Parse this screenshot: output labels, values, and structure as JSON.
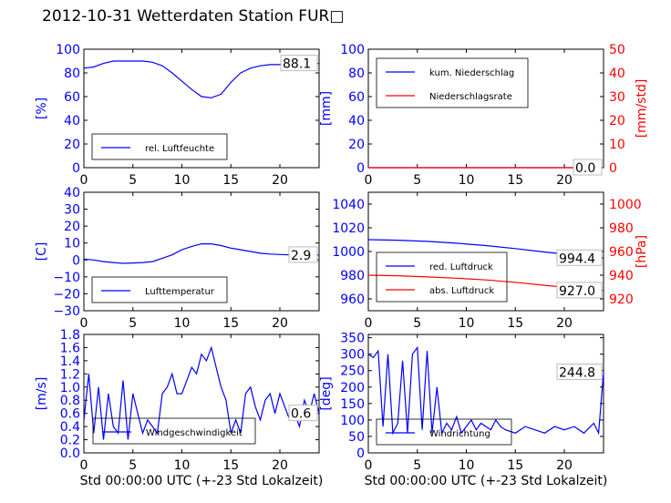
{
  "figure_title": "2012-10-31 Wetterdaten Station FUR□",
  "colors": {
    "primary": "#0000ff",
    "secondary": "#ff0000",
    "annotation": "#000000"
  },
  "chart_data": [
    {
      "id": "humidity",
      "type": "line",
      "ylabel": "[%]",
      "ylim": [
        0,
        100
      ],
      "yticks": [
        "0",
        "20",
        "40",
        "60",
        "80",
        "100"
      ],
      "xlim": [
        0,
        24
      ],
      "xticks": [
        "0",
        "5",
        "10",
        "15",
        "20"
      ],
      "xlabel": "",
      "legend": {
        "placement": "lower-left",
        "entries": [
          "rel. Luftfeuchte"
        ]
      },
      "last_value_label": "88.1",
      "series": [
        {
          "name": "rel. Luftfeuchte",
          "color": "#0000ff",
          "x": [
            0,
            1,
            2,
            3,
            4,
            5,
            6,
            7,
            8,
            9,
            10,
            11,
            12,
            13,
            14,
            15,
            16,
            17,
            18,
            19,
            20,
            21,
            22,
            23,
            24
          ],
          "y": [
            84,
            85,
            88,
            90,
            90,
            90,
            90,
            89,
            86,
            80,
            73,
            66,
            60,
            59,
            62,
            72,
            80,
            84,
            86,
            87,
            87,
            88,
            88,
            88,
            88
          ]
        }
      ]
    },
    {
      "id": "precipitation",
      "type": "line",
      "ylabel": "[mm]",
      "ylabel_right": "[mm/std]",
      "ylim": [
        0,
        100
      ],
      "ylim_right": [
        0,
        50
      ],
      "yticks": [
        "0",
        "20",
        "40",
        "60",
        "80",
        "100"
      ],
      "yticks_right": [
        "0",
        "10",
        "20",
        "30",
        "40",
        "50"
      ],
      "xlim": [
        0,
        24
      ],
      "xticks": [
        "0",
        "5",
        "10",
        "15",
        "20"
      ],
      "xlabel": "",
      "legend": {
        "placement": "upper-left",
        "entries": [
          "kum. Niederschlag",
          "Niederschlagsrate"
        ]
      },
      "last_value_label": "0.0",
      "last_value_label_2": "0.0",
      "series": [
        {
          "name": "kum. Niederschlag",
          "color": "#0000ff",
          "axis": "left",
          "x": [
            0,
            24
          ],
          "y": [
            0,
            0
          ]
        },
        {
          "name": "Niederschlagsrate",
          "color": "#ff0000",
          "axis": "right",
          "x": [
            0,
            24
          ],
          "y": [
            0,
            0
          ]
        }
      ]
    },
    {
      "id": "temperature",
      "type": "line",
      "ylabel": "[C]",
      "ylim": [
        -30,
        40
      ],
      "yticks": [
        "−30",
        "−20",
        "−10",
        "0",
        "10",
        "20",
        "30",
        "40"
      ],
      "xlim": [
        0,
        24
      ],
      "xticks": [
        "0",
        "5",
        "10",
        "15",
        "20"
      ],
      "xlabel": "",
      "legend": {
        "placement": "lower-left",
        "entries": [
          "Lufttemperatur"
        ]
      },
      "last_value_label": "2.9",
      "series": [
        {
          "name": "Lufttemperatur",
          "color": "#0000ff",
          "x": [
            0,
            1,
            2,
            3,
            4,
            5,
            6,
            7,
            8,
            9,
            10,
            11,
            12,
            13,
            14,
            15,
            16,
            17,
            18,
            19,
            20,
            21,
            22,
            23,
            24
          ],
          "y": [
            0.5,
            0,
            -1,
            -1.5,
            -2,
            -1.8,
            -1.5,
            -1,
            1,
            3,
            6,
            8,
            9.5,
            9.5,
            8.5,
            7,
            6,
            5,
            4,
            3.5,
            3.2,
            3,
            3,
            2.9,
            2.9
          ]
        }
      ]
    },
    {
      "id": "pressure",
      "type": "line",
      "ylabel_right": "[hPa]",
      "ylim": [
        950,
        1050
      ],
      "ylim_right": [
        910,
        1010
      ],
      "yticks": [
        "960",
        "980",
        "1000",
        "1020",
        "1040"
      ],
      "yticks_right": [
        "920",
        "940",
        "960",
        "980",
        "1000"
      ],
      "xlim": [
        0,
        24
      ],
      "xticks": [
        "0",
        "5",
        "10",
        "15",
        "20"
      ],
      "xlabel": "",
      "legend": {
        "placement": "lower-left",
        "entries": [
          "red. Luftdruck",
          "abs. Luftdruck"
        ]
      },
      "last_value_label": "994.4",
      "last_value_label_2": "927.0",
      "series": [
        {
          "name": "red. Luftdruck",
          "color": "#0000ff",
          "axis": "left",
          "x": [
            0,
            3,
            6,
            9,
            12,
            15,
            18,
            21,
            24
          ],
          "y": [
            1010,
            1009.5,
            1008.5,
            1007,
            1005,
            1002.5,
            999.5,
            997,
            994.4
          ]
        },
        {
          "name": "abs. Luftdruck",
          "color": "#ff0000",
          "axis": "right",
          "x": [
            0,
            3,
            6,
            9,
            12,
            15,
            18,
            21,
            24
          ],
          "y": [
            940,
            939.5,
            938.5,
            937.5,
            936,
            934,
            931.5,
            929,
            927
          ]
        }
      ]
    },
    {
      "id": "windspeed",
      "type": "line",
      "ylabel": "[m/s]",
      "ylim": [
        0,
        1.8
      ],
      "yticks": [
        "0.0",
        "0.2",
        "0.4",
        "0.6",
        "0.8",
        "1.0",
        "1.2",
        "1.4",
        "1.6",
        "1.8"
      ],
      "xlim": [
        0,
        24
      ],
      "xticks": [
        "0",
        "5",
        "10",
        "15",
        "20"
      ],
      "xlabel": "Std 00:00:00 UTC (+-23 Std Lokalzeit)",
      "legend": {
        "placement": "lower-center",
        "entries": [
          "Windgeschwindigkeit"
        ]
      },
      "last_value_label": "0.6",
      "series": [
        {
          "name": "Windgeschwindigkeit",
          "color": "#0000ff",
          "x": [
            0,
            0.5,
            1,
            1.5,
            2,
            2.5,
            3,
            3.5,
            4,
            4.5,
            5,
            5.5,
            6,
            6.5,
            7,
            7.5,
            8,
            8.5,
            9,
            9.5,
            10,
            10.5,
            11,
            11.5,
            12,
            12.5,
            13,
            13.5,
            14,
            14.5,
            15,
            15.5,
            16,
            16.5,
            17,
            17.5,
            18,
            18.5,
            19,
            19.5,
            20,
            20.5,
            21,
            21.5,
            22,
            22.5,
            23,
            23.5,
            24
          ],
          "y": [
            0.5,
            1.2,
            0.3,
            1.0,
            0.2,
            0.9,
            0.4,
            0.3,
            1.1,
            0.2,
            0.9,
            0.6,
            0.3,
            0.5,
            0.4,
            0.3,
            0.9,
            1.0,
            1.2,
            0.9,
            0.9,
            1.1,
            1.3,
            1.2,
            1.5,
            1.4,
            1.6,
            1.3,
            1.0,
            0.8,
            0.3,
            0.5,
            0.3,
            0.9,
            1.0,
            0.7,
            0.5,
            0.8,
            0.9,
            0.6,
            0.9,
            0.7,
            0.5,
            0.6,
            0.4,
            0.8,
            0.6,
            0.9,
            0.6
          ]
        }
      ]
    },
    {
      "id": "winddirection",
      "type": "line",
      "ylabel": "[deg]",
      "ylim": [
        0,
        360
      ],
      "yticks": [
        "0",
        "50",
        "100",
        "150",
        "200",
        "250",
        "300",
        "350"
      ],
      "xlim": [
        0,
        24
      ],
      "xticks": [
        "0",
        "5",
        "10",
        "15",
        "20"
      ],
      "xlabel": "Std 00:00:00 UTC (+-23 Std Lokalzeit)",
      "legend": {
        "placement": "lower-left",
        "entries": [
          "Windrichtung"
        ]
      },
      "last_value_label": "244.8",
      "series": [
        {
          "name": "Windrichtung",
          "color": "#0000ff",
          "x": [
            0,
            0.5,
            1,
            1.5,
            2,
            2.5,
            3,
            3.5,
            4,
            4.5,
            5,
            5.5,
            6,
            6.5,
            7,
            7.5,
            8,
            8.5,
            9,
            9.5,
            10,
            10.5,
            11,
            11.5,
            12,
            12.5,
            13,
            13.5,
            14,
            15,
            16,
            17,
            18,
            19,
            20,
            21,
            22,
            23,
            23.5,
            24
          ],
          "y": [
            300,
            290,
            310,
            80,
            300,
            60,
            90,
            280,
            60,
            300,
            320,
            70,
            310,
            60,
            200,
            60,
            90,
            70,
            110,
            60,
            80,
            100,
            70,
            90,
            80,
            70,
            100,
            80,
            70,
            60,
            80,
            70,
            60,
            80,
            70,
            80,
            60,
            90,
            60,
            245
          ]
        }
      ]
    }
  ]
}
